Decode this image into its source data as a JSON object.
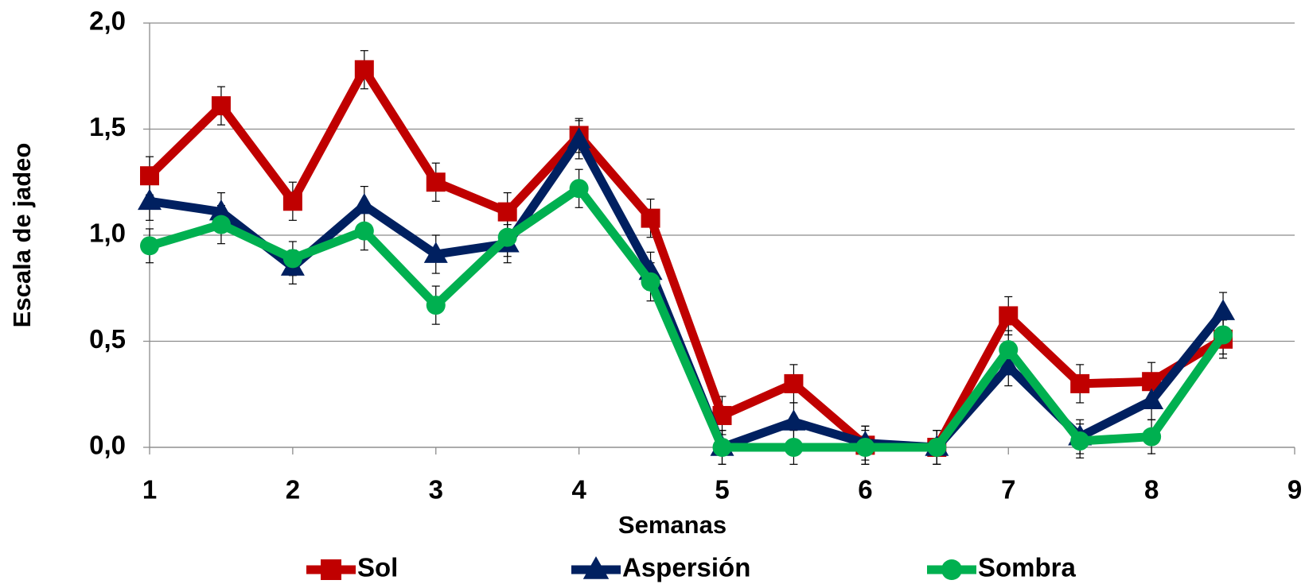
{
  "chart_data": {
    "type": "line",
    "x_label": "Semanas",
    "y_label": "Escala de jadeo",
    "x": [
      1,
      1.5,
      2,
      2.5,
      3,
      3.5,
      4,
      4.5,
      5,
      5.5,
      6,
      6.5,
      7,
      7.5,
      8,
      8.5
    ],
    "xlim": [
      1,
      9
    ],
    "xticks": [
      1,
      2,
      3,
      4,
      5,
      6,
      7,
      8,
      9
    ],
    "ylim": [
      0,
      2
    ],
    "yticks": [
      {
        "value": 0,
        "label": "0,0"
      },
      {
        "value": 0.5,
        "label": "0,5"
      },
      {
        "value": 1,
        "label": "1,0"
      },
      {
        "value": 1.5,
        "label": "1,5"
      },
      {
        "value": 2,
        "label": "2,0"
      }
    ],
    "grid": true,
    "legend": "bottom",
    "series": [
      {
        "name": "Sol",
        "color": "#c00000",
        "marker": "square",
        "values": [
          1.28,
          1.61,
          1.16,
          1.78,
          1.25,
          1.11,
          1.47,
          1.08,
          0.15,
          0.3,
          0.01,
          0.0,
          0.62,
          0.3,
          0.31,
          0.51
        ],
        "errors": [
          0.09,
          0.09,
          0.09,
          0.09,
          0.09,
          0.09,
          0.08,
          0.09,
          0.09,
          0.09,
          0.09,
          0.08,
          0.09,
          0.09,
          0.09,
          0.09
        ]
      },
      {
        "name": "Aspersión",
        "color": "#002060",
        "marker": "triangle",
        "values": [
          1.16,
          1.11,
          0.85,
          1.14,
          0.91,
          0.96,
          1.45,
          0.83,
          0.0,
          0.12,
          0.02,
          0.0,
          0.38,
          0.05,
          0.22,
          0.64
        ],
        "errors": [
          0.09,
          0.09,
          0.08,
          0.09,
          0.09,
          0.09,
          0.09,
          0.09,
          0.08,
          0.09,
          0.08,
          0.08,
          0.09,
          0.08,
          0.09,
          0.09
        ]
      },
      {
        "name": "Sombra",
        "color": "#00b050",
        "marker": "circle",
        "values": [
          0.95,
          1.05,
          0.89,
          1.02,
          0.67,
          0.99,
          1.22,
          0.78,
          0.0,
          0.0,
          0.0,
          0.0,
          0.46,
          0.03,
          0.05,
          0.53
        ],
        "errors": [
          0.08,
          0.09,
          0.08,
          0.09,
          0.09,
          0.09,
          0.09,
          0.09,
          0.08,
          0.08,
          0.08,
          0.08,
          0.09,
          0.08,
          0.08,
          0.09
        ]
      }
    ]
  }
}
